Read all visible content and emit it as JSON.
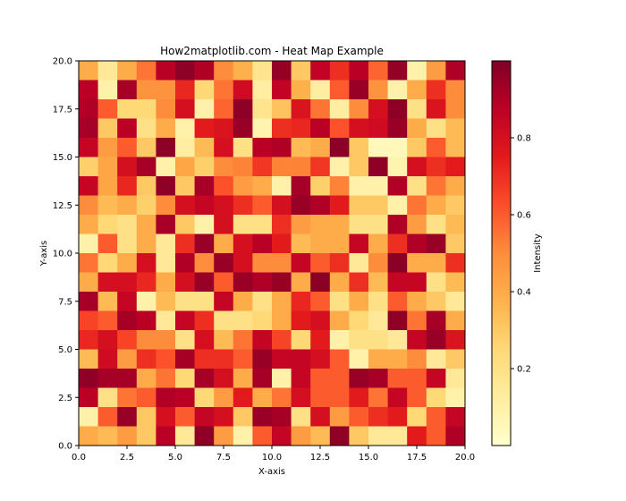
{
  "chart_data": {
    "type": "heatmap",
    "title": "How2matplotlib.com - Heat Map Example",
    "xlabel": "X-axis",
    "ylabel": "Y-axis",
    "colorbar_label": "Intensity",
    "colormap": "YlOrRd",
    "xlim": [
      0,
      20
    ],
    "ylim": [
      0,
      20
    ],
    "x_ticks": [
      "0.0",
      "2.5",
      "5.0",
      "7.5",
      "10.0",
      "12.5",
      "15.0",
      "17.5",
      "20.0"
    ],
    "y_ticks": [
      "0.0",
      "2.5",
      "5.0",
      "7.5",
      "10.0",
      "12.5",
      "15.0",
      "17.5",
      "20.0"
    ],
    "colorbar_range": [
      0.0,
      1.0
    ],
    "colorbar_ticks": [
      "0.2",
      "0.4",
      "0.6",
      "0.8"
    ],
    "rows_top_to_bottom": [
      [
        0.4,
        0.15,
        0.4,
        0.55,
        0.88,
        0.97,
        0.9,
        0.5,
        0.38,
        0.18,
        0.96,
        0.3,
        0.86,
        0.7,
        0.88,
        0.58,
        0.96,
        0.1,
        0.45,
        0.9
      ],
      [
        0.88,
        0.1,
        0.92,
        0.48,
        0.48,
        0.72,
        0.25,
        0.55,
        0.82,
        0.12,
        0.86,
        0.38,
        0.12,
        0.6,
        0.95,
        0.48,
        0.1,
        0.4,
        0.7,
        0.5
      ],
      [
        0.9,
        0.6,
        0.25,
        0.25,
        0.5,
        0.8,
        0.1,
        0.58,
        0.97,
        0.18,
        0.32,
        0.78,
        0.55,
        0.12,
        0.5,
        0.8,
        0.97,
        0.2,
        0.78,
        0.5
      ],
      [
        0.92,
        0.3,
        0.88,
        0.2,
        0.4,
        0.1,
        0.75,
        0.78,
        0.95,
        0.08,
        0.7,
        0.72,
        0.88,
        0.62,
        0.8,
        0.82,
        0.95,
        0.4,
        0.2,
        0.35
      ],
      [
        0.85,
        0.45,
        0.6,
        0.3,
        0.97,
        0.12,
        0.35,
        0.8,
        0.2,
        0.88,
        0.9,
        0.35,
        0.4,
        0.98,
        0.3,
        0.05,
        0.05,
        0.3,
        0.6,
        0.35
      ],
      [
        0.28,
        0.42,
        0.8,
        0.92,
        0.1,
        0.42,
        0.28,
        0.5,
        0.52,
        0.68,
        0.52,
        0.52,
        0.68,
        0.1,
        0.3,
        0.97,
        0.08,
        0.8,
        0.7,
        0.75
      ],
      [
        0.85,
        0.42,
        0.72,
        0.3,
        0.97,
        0.3,
        0.92,
        0.62,
        0.45,
        0.4,
        0.1,
        0.92,
        0.28,
        0.52,
        0.1,
        0.1,
        0.9,
        0.2,
        0.55,
        0.4
      ],
      [
        0.5,
        0.35,
        0.4,
        0.28,
        0.5,
        0.8,
        0.85,
        0.8,
        0.7,
        0.6,
        0.8,
        0.95,
        0.9,
        0.75,
        0.3,
        0.3,
        0.1,
        0.55,
        0.4,
        0.3
      ],
      [
        0.4,
        0.25,
        0.2,
        0.4,
        0.92,
        0.3,
        0.1,
        0.8,
        0.2,
        0.2,
        0.7,
        0.45,
        0.4,
        0.4,
        0.2,
        0.2,
        0.9,
        0.45,
        0.2,
        0.35
      ],
      [
        0.1,
        0.6,
        0.2,
        0.4,
        0.15,
        0.7,
        0.95,
        0.4,
        0.8,
        0.88,
        0.75,
        0.35,
        0.4,
        0.4,
        0.85,
        0.4,
        0.7,
        0.9,
        0.95,
        0.3
      ],
      [
        0.55,
        0.25,
        0.4,
        0.8,
        0.15,
        0.9,
        0.5,
        0.95,
        0.8,
        0.5,
        0.5,
        0.85,
        0.6,
        0.7,
        0.15,
        0.5,
        0.98,
        0.4,
        0.4,
        0.7
      ],
      [
        0.4,
        0.8,
        0.8,
        0.72,
        0.4,
        0.8,
        0.95,
        0.6,
        0.95,
        0.9,
        0.95,
        0.4,
        0.98,
        0.4,
        0.7,
        0.35,
        0.85,
        0.85,
        0.2,
        0.35
      ],
      [
        0.92,
        0.35,
        0.85,
        0.1,
        0.35,
        0.2,
        0.2,
        0.85,
        0.4,
        0.2,
        0.4,
        0.72,
        0.6,
        0.2,
        0.4,
        0.2,
        0.6,
        0.4,
        0.3,
        0.15
      ],
      [
        0.65,
        0.6,
        0.92,
        0.88,
        0.15,
        0.85,
        0.7,
        0.2,
        0.2,
        0.25,
        0.4,
        0.75,
        0.8,
        0.4,
        0.25,
        0.15,
        0.97,
        0.55,
        0.92,
        0.4
      ],
      [
        0.72,
        0.8,
        0.65,
        0.5,
        0.5,
        0.2,
        0.8,
        0.35,
        0.55,
        0.85,
        0.65,
        0.25,
        0.75,
        0.1,
        0.2,
        0.2,
        0.15,
        0.85,
        0.95,
        0.78
      ],
      [
        0.35,
        0.82,
        0.45,
        0.7,
        0.62,
        0.92,
        0.7,
        0.7,
        0.6,
        0.95,
        0.85,
        0.85,
        0.8,
        0.6,
        0.1,
        0.4,
        0.4,
        0.5,
        0.15,
        0.3
      ],
      [
        0.97,
        0.92,
        0.92,
        0.4,
        0.55,
        0.25,
        0.92,
        0.8,
        0.4,
        0.92,
        0.1,
        0.85,
        0.6,
        0.6,
        0.95,
        0.92,
        0.6,
        0.6,
        0.85,
        0.15
      ],
      [
        0.88,
        0.2,
        0.55,
        0.6,
        0.9,
        0.88,
        0.25,
        0.45,
        0.75,
        0.4,
        0.55,
        0.8,
        0.6,
        0.6,
        0.75,
        0.55,
        0.85,
        0.6,
        0.25,
        0.1
      ],
      [
        0.1,
        0.6,
        0.95,
        0.3,
        0.8,
        0.6,
        0.85,
        0.8,
        0.3,
        0.95,
        0.92,
        0.2,
        0.8,
        0.45,
        0.6,
        0.7,
        0.75,
        0.25,
        0.6,
        0.85
      ],
      [
        0.4,
        0.35,
        0.45,
        0.3,
        0.88,
        0.15,
        0.97,
        0.45,
        0.1,
        0.6,
        0.85,
        0.45,
        0.35,
        0.97,
        0.3,
        0.15,
        0.15,
        0.75,
        0.6,
        0.9
      ]
    ]
  }
}
